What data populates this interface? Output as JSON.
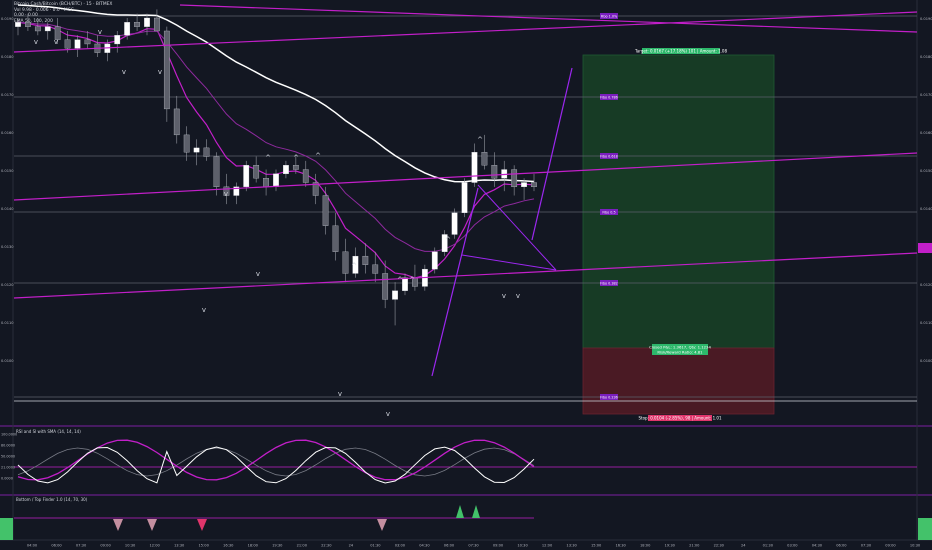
{
  "legend": {
    "line1": "Bitcoin Cash/Bitcoin (BCH/BTC) · 15 · BITMEX",
    "line2": "Vol 9.98 · 0.006 · 0.0 · MCC",
    "line3": "0.00 · 0.00",
    "line4": "EMA 50, 100, 200"
  },
  "price_labels_left": [
    "0.0190",
    "0.0180",
    "0.0170",
    "0.0160",
    "0.0150",
    "0.0140",
    "0.0130",
    "0.0120",
    "0.0110",
    "0.0100"
  ],
  "fib_labels": [
    "Fibo 1.0%",
    "Fibo 0.786",
    "Fibo 0.618",
    "Fibo 0.5",
    "Fibo 0.382",
    "Fibo 0.236",
    "Fibo 0"
  ],
  "position": {
    "target_label": "Target: 0.0167 (+17.18%) 101 | Amount: 1.08",
    "info_label_1": "Closed P&L: 1.3617, Qty: 1.1234",
    "info_label_2": "Risk/Reward Ratio: 4.81",
    "stop_label": "Stop: 0.0104 (-2.85%), 98 | Amount: 1.01"
  },
  "indicators": {
    "rsi_title": "RSI and SI with SMA (14, 14, 14)",
    "rsi_values": [
      "100.0000",
      "80.0000",
      "50.0000",
      "21.0000",
      "0.0000"
    ],
    "bottom_title": "Bottom / Top Finder 1.0 (14, 70, 30)"
  },
  "time_labels": [
    "04:00",
    "06:00",
    "07:30",
    "09:00",
    "10:30",
    "12:00",
    "13:30",
    "15:00",
    "16:30",
    "18:00",
    "19:30",
    "21:00",
    "22:30",
    "24",
    "01:30",
    "03:00",
    "04:30",
    "06:00",
    "07:30",
    "09:00",
    "10:30",
    "12:00",
    "13:30",
    "15:00",
    "16:30",
    "18:00",
    "19:30",
    "21:00",
    "22:30",
    "24",
    "01:30",
    "03:00",
    "04:30",
    "06:00",
    "07:30",
    "09:00",
    "10:30"
  ],
  "chart_data": {
    "type": "candlestick",
    "symbol": "BCH/BTC",
    "timeframe": "15",
    "ylim": [
      0.0098,
      0.0192
    ],
    "candles": [
      [
        0.0187,
        0.0189,
        0.0185,
        0.0188
      ],
      [
        0.0188,
        0.019,
        0.0186,
        0.0187
      ],
      [
        0.0187,
        0.0189,
        0.0185,
        0.0186
      ],
      [
        0.0186,
        0.0188,
        0.0184,
        0.0187
      ],
      [
        0.0187,
        0.0189,
        0.0183,
        0.0184
      ],
      [
        0.0184,
        0.0186,
        0.0181,
        0.0182
      ],
      [
        0.0182,
        0.0185,
        0.018,
        0.0184
      ],
      [
        0.0184,
        0.0186,
        0.0182,
        0.0183
      ],
      [
        0.0183,
        0.0185,
        0.018,
        0.0181
      ],
      [
        0.0181,
        0.0184,
        0.0179,
        0.0183
      ],
      [
        0.0183,
        0.0186,
        0.0181,
        0.0185
      ],
      [
        0.0185,
        0.0189,
        0.0184,
        0.0188
      ],
      [
        0.0188,
        0.019,
        0.0186,
        0.0187
      ],
      [
        0.0187,
        0.019,
        0.0185,
        0.0189
      ],
      [
        0.0189,
        0.0191,
        0.0186,
        0.0186
      ],
      [
        0.0186,
        0.0187,
        0.0165,
        0.0168
      ],
      [
        0.0168,
        0.0171,
        0.016,
        0.0162
      ],
      [
        0.0162,
        0.0164,
        0.0156,
        0.0158
      ],
      [
        0.0158,
        0.0161,
        0.0155,
        0.0159
      ],
      [
        0.0159,
        0.0161,
        0.0156,
        0.0157
      ],
      [
        0.0157,
        0.0158,
        0.0148,
        0.015
      ],
      [
        0.015,
        0.0153,
        0.0146,
        0.0148
      ],
      [
        0.0148,
        0.0151,
        0.0146,
        0.015
      ],
      [
        0.015,
        0.0156,
        0.0149,
        0.0155
      ],
      [
        0.0155,
        0.0157,
        0.0151,
        0.0152
      ],
      [
        0.0152,
        0.0154,
        0.0148,
        0.015
      ],
      [
        0.015,
        0.0154,
        0.0149,
        0.0153
      ],
      [
        0.0153,
        0.0156,
        0.0152,
        0.0155
      ],
      [
        0.0155,
        0.0157,
        0.0153,
        0.0154
      ],
      [
        0.0154,
        0.0156,
        0.015,
        0.0151
      ],
      [
        0.0151,
        0.0153,
        0.0146,
        0.0148
      ],
      [
        0.0148,
        0.015,
        0.0139,
        0.0141
      ],
      [
        0.0141,
        0.0144,
        0.0133,
        0.0135
      ],
      [
        0.0135,
        0.0138,
        0.0128,
        0.013
      ],
      [
        0.013,
        0.0136,
        0.0129,
        0.0134
      ],
      [
        0.0134,
        0.0137,
        0.013,
        0.0132
      ],
      [
        0.0132,
        0.0135,
        0.0128,
        0.013
      ],
      [
        0.013,
        0.0133,
        0.0122,
        0.0124
      ],
      [
        0.0124,
        0.0128,
        0.0118,
        0.0126
      ],
      [
        0.0126,
        0.013,
        0.0125,
        0.0129
      ],
      [
        0.0129,
        0.0132,
        0.0126,
        0.0127
      ],
      [
        0.0127,
        0.0132,
        0.0126,
        0.0131
      ],
      [
        0.0131,
        0.0136,
        0.013,
        0.0135
      ],
      [
        0.0135,
        0.014,
        0.0134,
        0.0139
      ],
      [
        0.0139,
        0.0145,
        0.0138,
        0.0144
      ],
      [
        0.0144,
        0.0152,
        0.0143,
        0.0151
      ],
      [
        0.0151,
        0.016,
        0.015,
        0.0158
      ],
      [
        0.0158,
        0.0162,
        0.0154,
        0.0155
      ],
      [
        0.0155,
        0.0158,
        0.015,
        0.0152
      ],
      [
        0.0152,
        0.0156,
        0.0149,
        0.0154
      ],
      [
        0.0154,
        0.0155,
        0.0148,
        0.015
      ],
      [
        0.015,
        0.0152,
        0.0147,
        0.0151
      ],
      [
        0.0151,
        0.0153,
        0.0149,
        0.015
      ]
    ]
  },
  "colors": {
    "background": "#131722",
    "up": "#ffffff",
    "down": "#5d606b",
    "trendline": "#c21fc9",
    "violet": "#9c27f0",
    "target_zone": "#173b25",
    "stop_zone": "#4a1a24",
    "target_label_bg": "#2db86b",
    "stop_label_bg": "#e0356b",
    "fib_label_bg": "#7a1fbf"
  }
}
